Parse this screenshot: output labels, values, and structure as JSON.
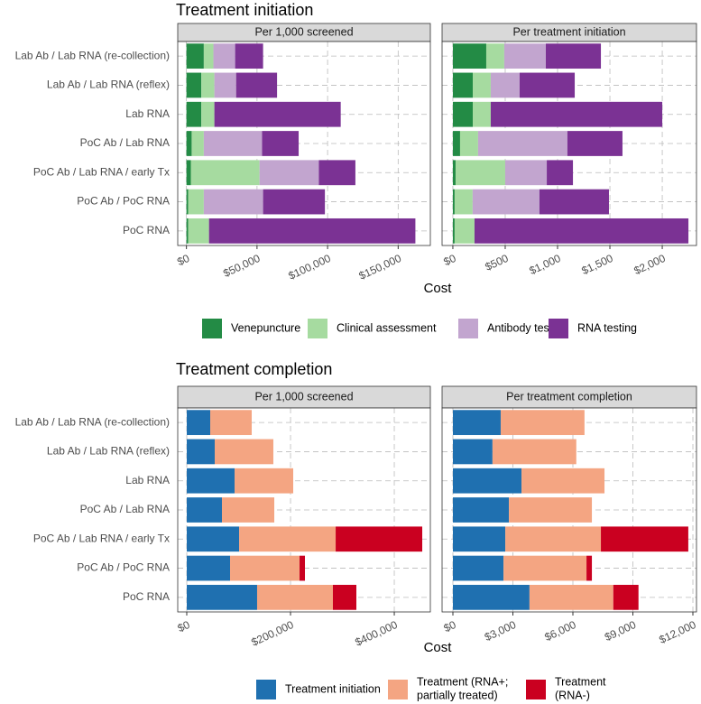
{
  "chart_data": [
    {
      "type": "bar",
      "orientation": "horizontal",
      "stacked": true,
      "grid": true,
      "title": "Treatment initiation",
      "x_label": "Cost",
      "categories": [
        "Lab Ab / Lab RNA (re-collection)",
        "Lab Ab / Lab RNA (reflex)",
        "Lab RNA",
        "PoC Ab / Lab RNA",
        "PoC Ab / Lab RNA / early Tx",
        "PoC Ab / PoC RNA",
        "PoC RNA"
      ],
      "legend": [
        {
          "name": "Venepuncture",
          "color": "#238b45"
        },
        {
          "name": "Clinical assessment",
          "color": "#a6dba0"
        },
        {
          "name": "Antibody testing",
          "color": "#c2a5cf"
        },
        {
          "name": "RNA testing",
          "color": "#7b3294"
        }
      ],
      "panels": [
        {
          "title": "Per 1,000 screened",
          "xlim": [
            -6170,
            172800
          ],
          "xticks": [
            {
              "value": 0,
              "label": "$0"
            },
            {
              "value": 50000,
              "label": "$50,000"
            },
            {
              "value": 100000,
              "label": "$100,000"
            },
            {
              "value": 150000,
              "label": "$150,000"
            }
          ],
          "series": [
            {
              "values": [
                12300,
                10500,
                10500,
                3700,
                3100,
                1200,
                1200
              ]
            },
            {
              "values": [
                6800,
                9300,
                9300,
                8600,
                48700,
                11100,
                14800
              ]
            },
            {
              "values": [
                15400,
                15400,
                0,
                41300,
                42000,
                42000,
                0
              ]
            },
            {
              "values": [
                19800,
                29000,
                89500,
                25900,
                25900,
                43800,
                146200
              ]
            }
          ]
        },
        {
          "title": "Per treatment initiation",
          "xlim": [
            -103,
            2327
          ],
          "xticks": [
            {
              "value": 0,
              "label": "$0"
            },
            {
              "value": 500,
              "label": "$500"
            },
            {
              "value": 1000,
              "label": "$1,000"
            },
            {
              "value": 1500,
              "label": "$1,500"
            },
            {
              "value": 2000,
              "label": "$2,000"
            }
          ],
          "series": [
            {
              "values": [
                319,
                190,
                190,
                69,
                26,
                17,
                17
              ]
            },
            {
              "values": [
                172,
                172,
                172,
                172,
                474,
                172,
                190
              ]
            },
            {
              "values": [
                397,
                276,
                0,
                853,
                397,
                638,
                0
              ]
            },
            {
              "values": [
                526,
                526,
                1638,
                526,
                250,
                664,
                2043
              ]
            }
          ]
        }
      ]
    },
    {
      "type": "bar",
      "orientation": "horizontal",
      "stacked": true,
      "grid": true,
      "title": "Treatment completion",
      "x_label": "Cost",
      "categories": [
        "Lab Ab / Lab RNA (re-collection)",
        "Lab Ab / Lab RNA (reflex)",
        "Lab RNA",
        "PoC Ab / Lab RNA",
        "PoC Ab / Lab RNA / early Tx",
        "PoC Ab / PoC RNA",
        "PoC RNA"
      ],
      "legend": [
        {
          "name": "Treatment initiation",
          "color": "#1f70b0"
        },
        {
          "name": "Treatment (RNA+;\npartially treated)",
          "color": "#f4a582"
        },
        {
          "name": "Treatment\n(RNA-)",
          "color": "#ca0020"
        }
      ],
      "panels": [
        {
          "title": "Per 1,000 screened",
          "xlim": [
            -17400,
            469500
          ],
          "xticks": [
            {
              "value": 0,
              "label": "$0"
            },
            {
              "value": 200000,
              "label": "$200,000"
            },
            {
              "value": 400000,
              "label": "$400,000"
            }
          ],
          "series": [
            {
              "values": [
                45200,
                53900,
                92200,
                67800,
                100900,
                83500,
                135600
              ]
            },
            {
              "values": [
                80000,
                113000,
                113000,
                100900,
                186100,
                133900,
                146100
              ]
            },
            {
              "values": [
                0,
                0,
                0,
                0,
                166900,
                10400,
                45200
              ]
            }
          ]
        },
        {
          "title": "Per treatment completion",
          "xlim": [
            -541,
            12180
          ],
          "xticks": [
            {
              "value": 0,
              "label": "$0"
            },
            {
              "value": 3000,
              "label": "$3,000"
            },
            {
              "value": 6000,
              "label": "$6,000"
            },
            {
              "value": 9000,
              "label": "$9,000"
            },
            {
              "value": 12000,
              "label": "$12,000"
            }
          ],
          "series": [
            {
              "values": [
                2390,
                1980,
                3430,
                2800,
                2620,
                2530,
                3830
              ]
            },
            {
              "values": [
                4190,
                4190,
                4150,
                4150,
                4780,
                4150,
                4190
              ]
            },
            {
              "values": [
                0,
                0,
                0,
                0,
                4370,
                270,
                1260
              ]
            }
          ]
        }
      ]
    }
  ]
}
